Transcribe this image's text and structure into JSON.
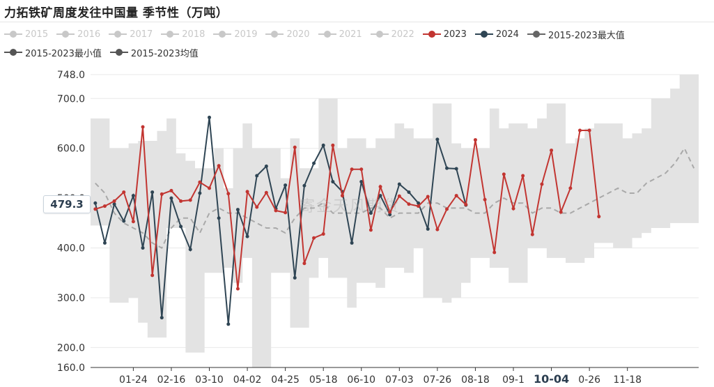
{
  "title": "力拓铁矿周度发往中国量 季节性（万吨）",
  "watermark": "寄金天风期货",
  "cursor_value": "479.3",
  "colors": {
    "inactive": "#c8c8c8",
    "y2023": "#c23531",
    "y2024": "#2f4554",
    "max": "#666666",
    "min": "#555555",
    "avg": "#555555",
    "band": "#e3e3e3",
    "avg_line": "#a9a9a9",
    "grid": "#e8e8e8",
    "axis": "#333333"
  },
  "legend": [
    {
      "label": "2015",
      "state": "off",
      "icon": "circle-line-icon"
    },
    {
      "label": "2016",
      "state": "off",
      "icon": "circle-line-icon"
    },
    {
      "label": "2017",
      "state": "off",
      "icon": "circle-line-icon"
    },
    {
      "label": "2018",
      "state": "off",
      "icon": "circle-line-icon"
    },
    {
      "label": "2019",
      "state": "off",
      "icon": "circle-line-icon"
    },
    {
      "label": "2020",
      "state": "off",
      "icon": "circle-line-icon"
    },
    {
      "label": "2021",
      "state": "off",
      "icon": "circle-line-icon"
    },
    {
      "label": "2022",
      "state": "off",
      "icon": "circle-line-icon"
    },
    {
      "label": "2023",
      "state": "on",
      "color": "#c23531",
      "icon": "circle-line-icon"
    },
    {
      "label": "2024",
      "state": "on",
      "color": "#2f4554",
      "icon": "circle-line-icon"
    },
    {
      "label": "2015-2023最大值",
      "state": "on",
      "color": "#666666",
      "icon": "circle-line-icon"
    },
    {
      "label": "2015-2023最小值",
      "state": "on",
      "color": "#555555",
      "icon": "circle-line-icon"
    },
    {
      "label": "2015-2023均值",
      "state": "on",
      "color": "#555555",
      "icon": "circle-line-icon"
    }
  ],
  "chart_data": {
    "type": "line",
    "title": "力拓铁矿周度发往中国量 季节性（万吨）",
    "ylim": [
      160,
      748
    ],
    "y_ticks": [
      "160.0",
      "200.0",
      "300.0",
      "400.0",
      "500.0",
      "600.0",
      "700.0",
      "748.0"
    ],
    "x_ticks": [
      "01-24",
      "02-16",
      "03-10",
      "04-02",
      "04-25",
      "05-18",
      "06-10",
      "07-03",
      "07-26",
      "08-18",
      "09-1",
      "10-04",
      "0-26",
      "11-18"
    ],
    "x_tick_positions": [
      4,
      8,
      12,
      16,
      20,
      24,
      28,
      32,
      36,
      40,
      44,
      48,
      52,
      56
    ],
    "highlight_tick": "10-04",
    "x_count": 64,
    "grid": true,
    "series": [
      {
        "name": "2023",
        "color": "#c23531",
        "values": [
          478,
          484,
          494,
          512,
          453,
          643,
          345,
          508,
          515,
          494,
          496,
          532,
          520,
          565,
          509,
          318,
          513,
          482,
          511,
          475,
          471,
          602,
          369,
          420,
          428,
          606,
          505,
          558,
          558,
          436,
          523,
          472,
          504,
          488,
          484,
          503,
          437,
          478,
          505,
          487,
          617,
          497,
          391,
          548,
          479,
          545,
          427,
          528,
          596,
          472,
          520,
          636,
          636,
          463
        ]
      },
      {
        "name": "2024",
        "color": "#2f4554",
        "values": [
          490,
          410,
          488,
          454,
          505,
          400,
          512,
          260,
          500,
          443,
          397,
          510,
          662,
          460,
          247,
          477,
          423,
          545,
          564,
          479,
          526,
          340,
          525,
          570,
          606,
          533,
          513,
          410,
          533,
          470,
          505,
          467,
          528,
          512,
          490,
          438,
          618,
          560,
          559,
          486
        ]
      },
      {
        "name": "2015-2023最大值",
        "color": "#666666",
        "values": [
          660,
          660,
          600,
          600,
          610,
          615,
          615,
          635,
          660,
          590,
          575,
          560,
          560,
          600,
          520,
          600,
          650,
          600,
          600,
          600,
          540,
          620,
          560,
          560,
          700,
          700,
          600,
          620,
          620,
          600,
          620,
          620,
          650,
          640,
          620,
          620,
          690,
          690,
          610,
          600,
          600,
          600,
          680,
          640,
          650,
          650,
          640,
          660,
          690,
          690,
          610,
          620,
          640,
          650,
          650,
          650,
          620,
          630,
          640,
          700,
          700,
          720,
          748,
          748
        ]
      },
      {
        "name": "2015-2023最小值",
        "color": "#555555",
        "values": [
          445,
          445,
          290,
          290,
          300,
          250,
          220,
          220,
          440,
          440,
          190,
          190,
          350,
          350,
          360,
          330,
          380,
          160,
          160,
          350,
          350,
          240,
          240,
          340,
          380,
          340,
          340,
          280,
          330,
          330,
          320,
          360,
          360,
          350,
          400,
          300,
          300,
          290,
          300,
          330,
          380,
          380,
          360,
          360,
          330,
          330,
          400,
          400,
          380,
          380,
          370,
          370,
          380,
          410,
          410,
          400,
          400,
          420,
          430,
          440,
          440,
          450,
          450,
          450
        ]
      },
      {
        "name": "2015-2023均值",
        "color": "#555555",
        "values": [
          530,
          510,
          470,
          450,
          440,
          430,
          410,
          400,
          440,
          460,
          460,
          430,
          470,
          480,
          470,
          470,
          460,
          450,
          440,
          440,
          430,
          460,
          480,
          480,
          490,
          470,
          470,
          470,
          470,
          480,
          480,
          460,
          470,
          470,
          470,
          490,
          490,
          480,
          480,
          480,
          470,
          470,
          490,
          500,
          490,
          490,
          470,
          480,
          480,
          470,
          470,
          480,
          490,
          500,
          510,
          520,
          510,
          510,
          530,
          540,
          550,
          570,
          600,
          560
        ]
      }
    ]
  }
}
